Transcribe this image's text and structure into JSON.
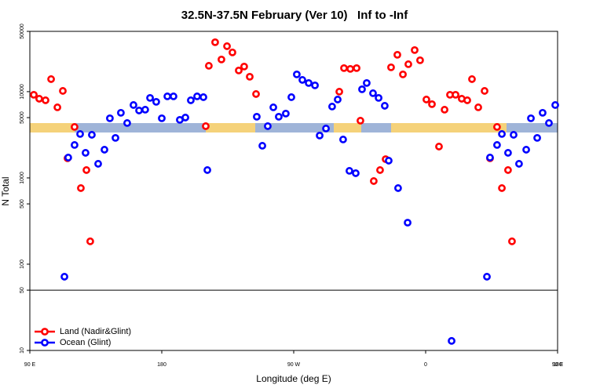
{
  "chart_data": {
    "type": "scatter",
    "title": "32.5N-37.5N February (Ver 10)   Inf to -Inf",
    "xlabel": "Longitude (deg E)",
    "ylabel": "N Total",
    "xlim": [
      90,
      450
    ],
    "xticks": [
      {
        "value": 90,
        "label": "90 E"
      },
      180,
      {
        "value": 270,
        "label": "90 W"
      },
      {
        "value": 360,
        "label": "0"
      },
      {
        "value": 450,
        "label": "90 E"
      },
      {
        "value": 540,
        "label": "180"
      }
    ],
    "ylim": [
      10,
      50000
    ],
    "ylog": true,
    "yticks": [
      10,
      50,
      100,
      500,
      1000,
      5000,
      10000,
      50000
    ],
    "hline": 50,
    "legend": "bottom-left",
    "series": [
      {
        "name": "Land (Nadir&Glint)",
        "color": "#ff0000",
        "x": [
          92.7,
          96.4,
          100.7,
          104.5,
          108.8,
          112.5,
          115.7,
          120.5,
          124.8,
          128.6,
          131.2,
          210,
          212.1,
          216.4,
          220.7,
          224.5,
          228.2,
          232.5,
          236.2,
          240,
          244.3,
          301.1,
          304.3,
          308.6,
          312.9,
          315.5,
          324.6,
          328.9,
          332.7,
          336.4,
          340.7,
          344.5,
          348.2,
          352.5,
          356.2,
          360.5,
          364.3,
          369.1,
          372.9,
          376.6,
          380.4,
          384.6,
          388.4,
          391.6,
          395.9,
          400.2,
          403.9,
          408.7,
          412,
          416.2,
          418.9
        ],
        "values": [
          9200,
          8280,
          7940,
          13970,
          6580,
          10200,
          1690,
          3900,
          762,
          1233,
          184,
          3980,
          19950,
          37400,
          23600,
          33650,
          28500,
          17600,
          19540,
          14890,
          9390,
          10000,
          18750,
          18360,
          18750,
          4610,
          920,
          1233,
          1650,
          19140,
          26750,
          15850,
          20800,
          30330,
          23100,
          8110,
          7160,
          2310,
          6180,
          9200,
          9200,
          8280,
          7940,
          13970,
          6580,
          10200,
          1690,
          3900,
          762,
          1233,
          184
        ]
      },
      {
        "name": "Ocean (Glint)",
        "color": "#0000ff",
        "x": [
          113.6,
          116.2,
          120.5,
          124.3,
          128,
          132.3,
          136.6,
          140.9,
          144.6,
          148.4,
          152.1,
          156.4,
          160.7,
          164.5,
          168.7,
          172,
          176.2,
          180,
          183.8,
          188,
          192.3,
          196.1,
          199.8,
          204.1,
          208.4,
          211.1,
          244.8,
          248.6,
          252.3,
          256.1,
          259.8,
          264.6,
          268.4,
          272.1,
          275.9,
          280.2,
          284.5,
          287.7,
          292,
          296.2,
          300,
          303.7,
          308,
          312.3,
          316.6,
          319.8,
          324.1,
          327.9,
          332.1,
          334.8,
          341.2,
          347.7,
          377.7,
          401.8,
          403.9,
          408.7,
          412,
          416.2,
          420,
          423.7,
          428.6,
          431.8,
          436.1,
          439.8,
          444.1,
          448.4
        ],
        "values": [
          71.6,
          1723,
          2410,
          3230,
          1954,
          3160,
          1458,
          2125,
          4910,
          2910,
          5690,
          4330,
          7000,
          6050,
          6180,
          8460,
          7620,
          4910,
          8820,
          8820,
          4710,
          5010,
          7940,
          8820,
          8630,
          1233,
          5120,
          2360,
          3980,
          6580,
          5120,
          5570,
          8630,
          15850,
          13680,
          12590,
          11830,
          3100,
          3740,
          6720,
          8110,
          2790,
          1208,
          1134,
          10650,
          12590,
          9590,
          8460,
          6860,
          1585,
          762,
          303,
          12.9,
          71.6,
          1723,
          2410,
          3230,
          1954,
          3160,
          1458,
          2125,
          4910,
          2910,
          5690,
          4330,
          7000
        ]
      }
    ]
  }
}
